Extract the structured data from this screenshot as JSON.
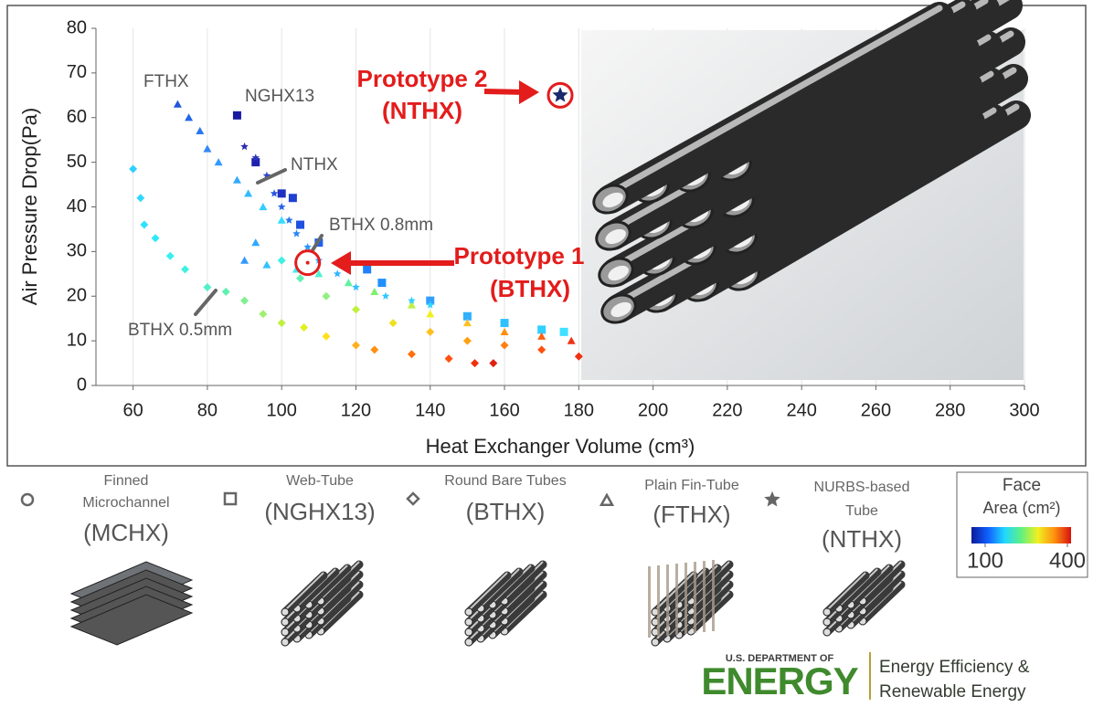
{
  "chart_data": {
    "type": "scatter",
    "x_label": "Heat Exchanger Volume (cm³)",
    "y_label": "Air Pressure Drop(Pa)",
    "xlim": [
      50,
      300
    ],
    "ylim": [
      0,
      80
    ],
    "xticks": [
      60,
      80,
      100,
      120,
      140,
      160,
      180,
      200,
      220,
      240,
      260,
      280,
      300
    ],
    "yticks": [
      0,
      10,
      20,
      30,
      40,
      50,
      60,
      70,
      80
    ],
    "grid": true,
    "series": [
      {
        "name": [
          "Finned",
          "Microchannel"
        ],
        "code": "(MCHX)",
        "marker": "circle",
        "x": [],
        "values": [],
        "colors": []
      },
      {
        "name": [
          "Web-Tube"
        ],
        "code": "(NGHX13)",
        "marker": "square",
        "x": [
          88,
          93,
          100,
          103,
          105,
          110,
          123,
          127,
          140,
          150,
          160,
          170,
          176
        ],
        "values": [
          60.5,
          50,
          43,
          42,
          36,
          32,
          26,
          23,
          19,
          15.5,
          14,
          12.5,
          12
        ],
        "colors": [
          "#1a1aa0",
          "#2020b0",
          "#2030c0",
          "#2040d0",
          "#2050e0",
          "#2060f0",
          "#2080ff",
          "#2090ff",
          "#30a0ff",
          "#30b0ff",
          "#30c0ff",
          "#30d0ff",
          "#40e0ff"
        ]
      },
      {
        "name": [
          "Round Bare Tubes"
        ],
        "code": "(BTHX)",
        "marker": "diamond",
        "x": [
          60,
          62,
          63,
          66,
          70,
          74,
          80,
          85,
          90,
          95,
          100,
          106,
          112,
          120,
          125,
          135,
          145,
          152,
          157,
          100,
          105,
          112,
          120,
          130,
          140,
          150,
          160,
          170,
          180
        ],
        "values": [
          48.5,
          42,
          36,
          33,
          29,
          26,
          22,
          21,
          19,
          16,
          14,
          13,
          11,
          9,
          8,
          7,
          6,
          5,
          5,
          28,
          24,
          20,
          17,
          14,
          12,
          10,
          9,
          8,
          6.5
        ],
        "colors": [
          "#30d0ff",
          "#30d8ff",
          "#30e0ff",
          "#30e8f8",
          "#38f0f0",
          "#40f0e0",
          "#50f0c8",
          "#60f0b0",
          "#80f090",
          "#a0f070",
          "#c0f040",
          "#e0f020",
          "#ffe020",
          "#ffb020",
          "#ff9010",
          "#ff7010",
          "#ff5010",
          "#f03010",
          "#e02010",
          "#40f0e0",
          "#60f0b0",
          "#90f080",
          "#c0f040",
          "#f0e020",
          "#ffc020",
          "#ffa010",
          "#ff8010",
          "#ff5010",
          "#f03010"
        ]
      },
      {
        "name": [
          "Plain Fin-Tube"
        ],
        "code": "(FTHX)",
        "marker": "triangle",
        "x": [
          72,
          75,
          78,
          80,
          83,
          88,
          91,
          95,
          100,
          93,
          90,
          96,
          104,
          110,
          118,
          125,
          135,
          140,
          150,
          160,
          170,
          178
        ],
        "values": [
          63,
          60,
          57,
          53,
          50,
          46,
          43,
          40,
          37,
          32,
          28,
          27,
          26,
          25,
          23,
          21,
          18,
          16,
          14,
          12,
          11,
          10
        ],
        "colors": [
          "#2255dd",
          "#2266e8",
          "#2a77f0",
          "#3388f5",
          "#3399ff",
          "#33aaff",
          "#33bbff",
          "#33ccff",
          "#33ddff",
          "#30a8ff",
          "#3399ff",
          "#33c0ff",
          "#40e8f0",
          "#50f0d0",
          "#60f0a0",
          "#80f070",
          "#c0f040",
          "#f0f020",
          "#ffc020",
          "#ff9010",
          "#ff6010",
          "#f03010"
        ]
      },
      {
        "name": [
          "NURBS-based",
          "Tube"
        ],
        "code": "(NTHX)",
        "marker": "star",
        "x": [
          90,
          93,
          96,
          98,
          100,
          102,
          104,
          107,
          110,
          115,
          120,
          128,
          135,
          140
        ],
        "values": [
          53.5,
          51,
          47,
          43,
          40,
          37,
          34,
          31,
          28,
          25,
          22,
          20,
          19,
          18
        ],
        "colors": [
          "#2a2ab0",
          "#2a35c0",
          "#2a45d0",
          "#2a55e0",
          "#2a65ea",
          "#2a75f0",
          "#2a85f5",
          "#2a95fa",
          "#30a5ff",
          "#30b5ff",
          "#30c0ff",
          "#30c8ff",
          "#30d0ff",
          "#30d8ff"
        ]
      }
    ],
    "annotations": [
      {
        "text": "FTHX"
      },
      {
        "text": "NGHX13"
      },
      {
        "text": "NTHX"
      },
      {
        "text": "BTHX 0.8mm"
      },
      {
        "text": "BTHX 0.5mm"
      }
    ],
    "prototypes": [
      {
        "label": [
          "Prototype 2",
          "(NTHX)"
        ],
        "x": 175,
        "y": 65,
        "marker": "star",
        "color": "#1a2a6c"
      },
      {
        "label": [
          "Prototype 1",
          "(BTHX)"
        ],
        "x": 107,
        "y": 27.5,
        "marker": "circle",
        "color": "#e31c1c"
      }
    ],
    "colorbar": {
      "title": [
        "Face",
        "Area (cm²)"
      ],
      "clim": [
        100,
        400
      ],
      "ticks": [
        100,
        400
      ],
      "colors": [
        "#0a1a9a",
        "#1060ff",
        "#20d8ff",
        "#60f080",
        "#f0f020",
        "#ff9010",
        "#d81010"
      ]
    }
  },
  "footer": {
    "agency": "U.S. DEPARTMENT OF",
    "name": "ENERGY",
    "office": [
      "Energy Efficiency &",
      "Renewable Energy"
    ]
  }
}
